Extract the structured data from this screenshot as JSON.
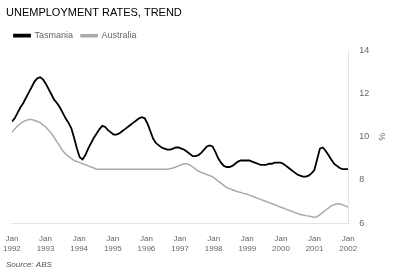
{
  "chart_data": {
    "type": "line",
    "title": "UNEMPLOYMENT RATES, TREND",
    "source": "Source: ABS",
    "ylabel": "%",
    "x": [
      0,
      1.0084,
      2.0168,
      3.0252,
      4.0336,
      5.042,
      6.0504,
      7.0588,
      8.0672,
      9.0756,
      10.084,
      11.0924,
      12.1008,
      13.1092,
      14.1176,
      15.1261,
      16.1345,
      17.1429,
      18.1513,
      19.1597,
      20.1681,
      21.1765,
      22.1849,
      23.1933,
      24.2017,
      25.2101,
      26.2185,
      27.2269,
      28.2353,
      29.2437,
      30.2521,
      31.2605,
      32.2689,
      33.2773,
      34.2857,
      35.2941,
      36.3025,
      37.3109,
      38.3193,
      39.3277,
      40.3361,
      41.3445,
      42.3529,
      43.3613,
      44.3697,
      45.3782,
      46.3866,
      47.395,
      48.4034,
      49.4118,
      50.4202,
      51.4286,
      52.437,
      53.4454,
      54.4538,
      55.4622,
      56.4706,
      57.479,
      58.4874,
      59.4958,
      60.5042,
      61.5126,
      62.521,
      63.5294,
      64.5378,
      65.5462,
      66.5546,
      67.563,
      68.5714,
      69.5798,
      70.5882,
      71.5966,
      72.605,
      73.6134,
      74.6218,
      75.6303,
      76.6387,
      77.6471,
      78.6555,
      79.6639,
      80.6723,
      81.6807,
      82.6891,
      83.6975,
      84.7059,
      85.7143,
      86.7227,
      87.7311,
      88.7395,
      89.7479,
      90.7563,
      91.7647,
      92.7731,
      93.7815,
      94.7899,
      95.7983,
      96.8067,
      97.8151,
      98.8235,
      99.8319,
      100.8403,
      101.8487,
      102.8571,
      103.8655,
      104.8739,
      105.8824,
      106.8908,
      107.8992,
      108.9076,
      109.916,
      110.9244,
      111.9328,
      112.9412,
      113.9496,
      114.958,
      115.9664,
      116.9748,
      117.9832,
      118.9916,
      120
    ],
    "xlim": [
      0,
      120
    ],
    "xticks": [
      {
        "value": 0,
        "label": "Jan\n1992"
      },
      {
        "value": 12,
        "label": "Jan\n1993"
      },
      {
        "value": 24,
        "label": "Jan\n1994"
      },
      {
        "value": 36,
        "label": "Jan\n1995"
      },
      {
        "value": 48,
        "label": "Jan\n1996"
      },
      {
        "value": 60,
        "label": "Jan\n1997"
      },
      {
        "value": 72,
        "label": "Jan\n1998"
      },
      {
        "value": 84,
        "label": "Jan\n1999"
      },
      {
        "value": 96,
        "label": "Jan\n2000"
      },
      {
        "value": 108,
        "label": "Jan\n2001"
      },
      {
        "value": 120,
        "label": "Jan\n2002"
      }
    ],
    "ylim": [
      6,
      14
    ],
    "yticks": [
      6,
      8,
      10,
      12,
      14
    ],
    "grid": false,
    "legend": "upper left",
    "series": [
      {
        "name": "Tasmania",
        "color": "#000000",
        "values": [
          10.7,
          10.85,
          11.1,
          11.35,
          11.55,
          11.8,
          12.05,
          12.3,
          12.55,
          12.7,
          12.75,
          12.65,
          12.45,
          12.2,
          11.95,
          11.7,
          11.55,
          11.35,
          11.1,
          10.85,
          10.65,
          10.4,
          9.95,
          9.45,
          9.05,
          8.95,
          9.15,
          9.45,
          9.7,
          9.95,
          10.15,
          10.35,
          10.5,
          10.45,
          10.3,
          10.2,
          10.1,
          10.1,
          10.15,
          10.25,
          10.35,
          10.45,
          10.55,
          10.65,
          10.75,
          10.85,
          10.9,
          10.85,
          10.6,
          10.25,
          9.9,
          9.7,
          9.6,
          9.5,
          9.45,
          9.4,
          9.4,
          9.45,
          9.5,
          9.5,
          9.45,
          9.4,
          9.3,
          9.2,
          9.1,
          9.1,
          9.15,
          9.25,
          9.4,
          9.55,
          9.6,
          9.55,
          9.3,
          9.0,
          8.8,
          8.65,
          8.6,
          8.6,
          8.65,
          8.75,
          8.85,
          8.9,
          8.9,
          8.9,
          8.9,
          8.85,
          8.8,
          8.75,
          8.7,
          8.7,
          8.7,
          8.75,
          8.75,
          8.8,
          8.8,
          8.8,
          8.75,
          8.65,
          8.55,
          8.45,
          8.35,
          8.25,
          8.2,
          8.15,
          8.15,
          8.2,
          8.3,
          8.45,
          8.95,
          9.45,
          9.5,
          9.35,
          9.15,
          8.95,
          8.75,
          8.65,
          8.55,
          8.5,
          8.5,
          8.5
        ]
      },
      {
        "name": "Australia",
        "color": "#aaaaaa",
        "values": [
          10.2,
          10.35,
          10.5,
          10.6,
          10.7,
          10.75,
          10.8,
          10.8,
          10.75,
          10.7,
          10.65,
          10.55,
          10.45,
          10.3,
          10.15,
          9.95,
          9.75,
          9.55,
          9.35,
          9.2,
          9.1,
          9.0,
          8.9,
          8.85,
          8.8,
          8.75,
          8.7,
          8.65,
          8.6,
          8.55,
          8.5,
          8.5,
          8.5,
          8.5,
          8.5,
          8.5,
          8.5,
          8.5,
          8.5,
          8.5,
          8.5,
          8.5,
          8.5,
          8.5,
          8.5,
          8.5,
          8.5,
          8.5,
          8.5,
          8.5,
          8.5,
          8.5,
          8.5,
          8.5,
          8.5,
          8.5,
          8.52,
          8.55,
          8.6,
          8.65,
          8.7,
          8.75,
          8.75,
          8.7,
          8.6,
          8.5,
          8.4,
          8.35,
          8.3,
          8.25,
          8.2,
          8.15,
          8.05,
          7.95,
          7.85,
          7.75,
          7.65,
          7.6,
          7.55,
          7.5,
          7.45,
          7.42,
          7.38,
          7.35,
          7.3,
          7.25,
          7.2,
          7.15,
          7.1,
          7.05,
          7.0,
          6.95,
          6.9,
          6.85,
          6.8,
          6.75,
          6.7,
          6.65,
          6.6,
          6.55,
          6.5,
          6.45,
          6.4,
          6.38,
          6.35,
          6.33,
          6.3,
          6.28,
          6.3,
          6.4,
          6.5,
          6.6,
          6.7,
          6.8,
          6.85,
          6.9,
          6.9,
          6.85,
          6.8,
          6.75
        ]
      }
    ]
  }
}
